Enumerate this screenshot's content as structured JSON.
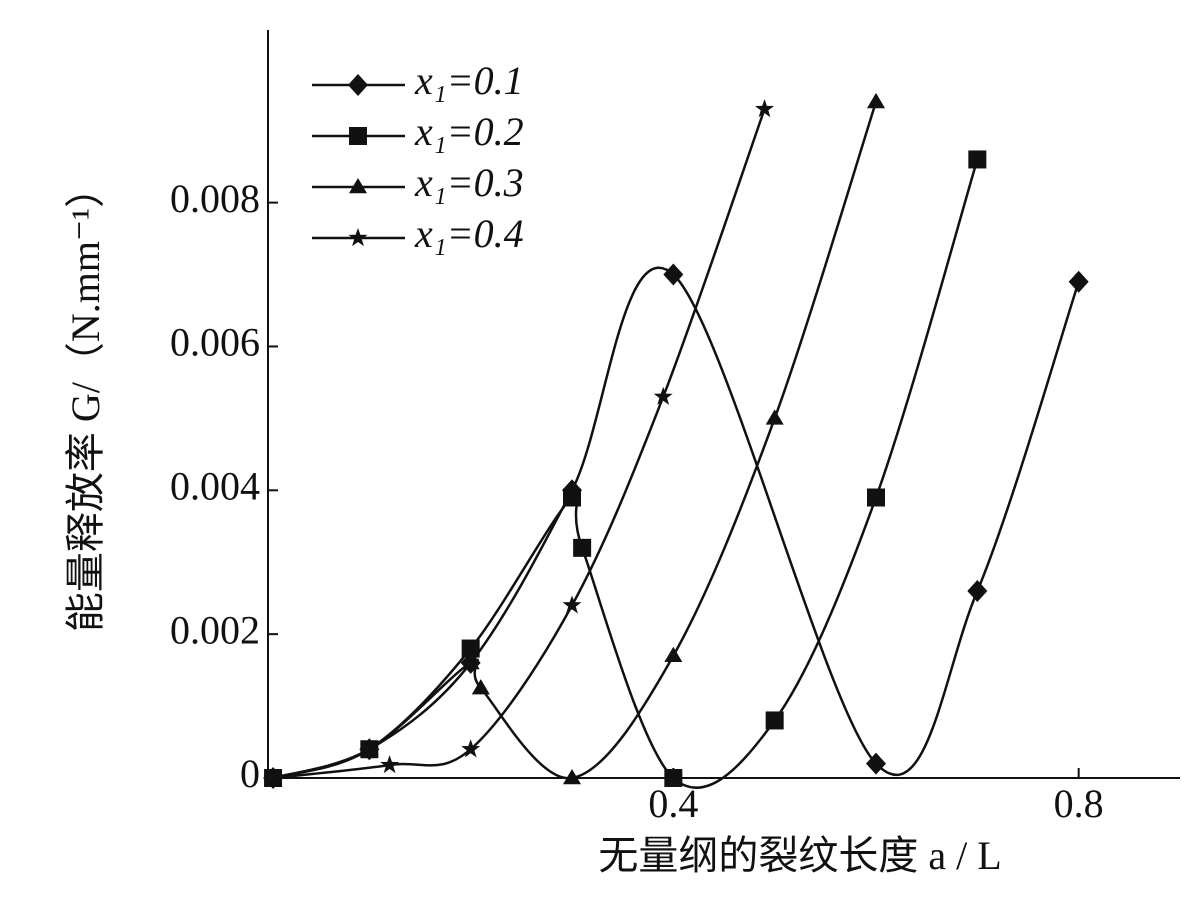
{
  "chart_data": {
    "type": "line",
    "x_label": "无量纲的裂纹长度 a / L",
    "y_label": "能量释放率 G/（N.mm⁻¹）",
    "xlim": [
      0,
      0.9
    ],
    "ylim": [
      0,
      0.0104
    ],
    "xticks": [
      0.4,
      0.8
    ],
    "yticks": [
      0,
      0.002,
      0.004,
      0.006,
      0.008
    ],
    "legend": "top-left",
    "series": [
      {
        "name": "x₁=0.1",
        "color": "#111111",
        "marker": "diamond",
        "x": [
          0.005,
          0.1,
          0.2,
          0.3,
          0.4,
          0.6,
          0.7,
          0.8
        ],
        "values": [
          0,
          0.0004,
          0.0016,
          0.004,
          0.007,
          0.0002,
          0.0026,
          0.0069
        ]
      },
      {
        "name": "x₁=0.2",
        "color": "#111111",
        "marker": "square",
        "x": [
          0.005,
          0.1,
          0.2,
          0.3,
          0.31,
          0.4,
          0.5,
          0.6,
          0.7
        ],
        "values": [
          0,
          0.0004,
          0.0018,
          0.0039,
          0.0032,
          0,
          0.0008,
          0.0039,
          0.0086
        ]
      },
      {
        "name": "x₁=0.3",
        "color": "#111111",
        "marker": "triangle",
        "x": [
          0.005,
          0.1,
          0.2,
          0.21,
          0.3,
          0.4,
          0.5,
          0.6
        ],
        "values": [
          0,
          0.0004,
          0.0016,
          0.00125,
          0,
          0.0017,
          0.005,
          0.0094
        ]
      },
      {
        "name": "x₁=0.4",
        "color": "#111111",
        "marker": "star",
        "x": [
          0.005,
          0.12,
          0.2,
          0.3,
          0.39,
          0.49
        ],
        "values": [
          0,
          0.00018,
          0.0004,
          0.0024,
          0.0053,
          0.0093
        ]
      }
    ]
  }
}
